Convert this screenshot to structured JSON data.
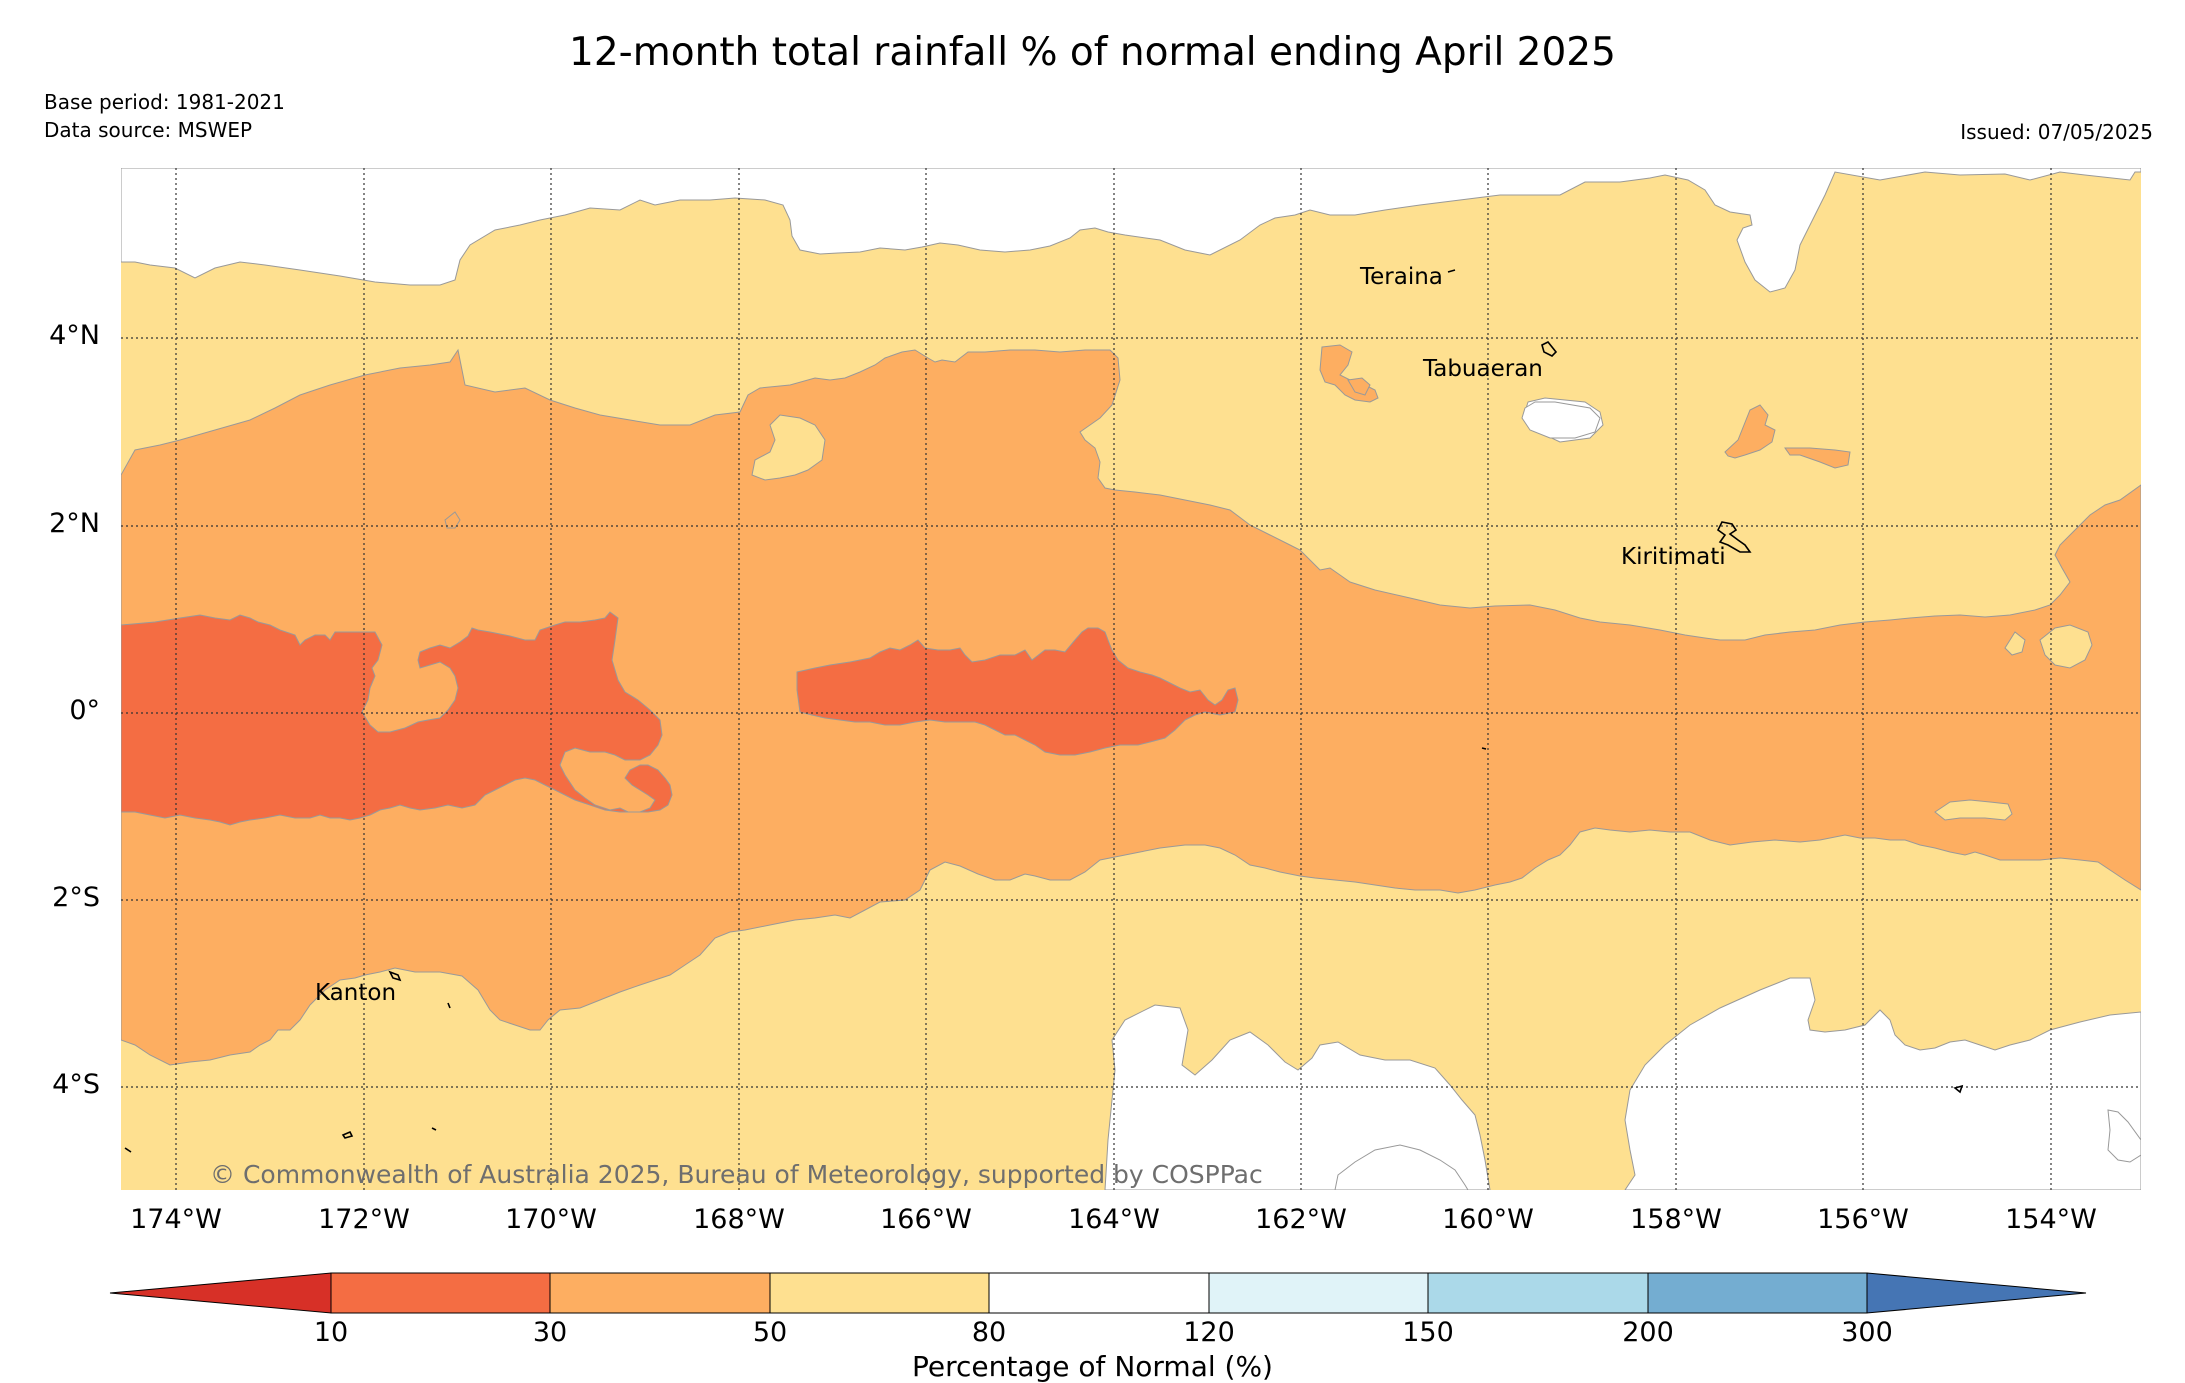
{
  "title": "12-month total rainfall % of normal ending April 2025",
  "base_period": "Base period: 1981-2021",
  "data_source": "Data source: MSWEP",
  "issued": "Issued: 07/05/2025",
  "copyright": "© Commonwealth of Australia 2025, Bureau of Meteorology, supported by COSPPac",
  "lat_labels": [
    "4°N",
    "2°N",
    "0°",
    "2°S",
    "4°S"
  ],
  "lon_labels": [
    "174°W",
    "172°W",
    "170°W",
    "168°W",
    "166°W",
    "164°W",
    "162°W",
    "160°W",
    "158°W",
    "156°W",
    "154°W"
  ],
  "places": [
    "Teraina",
    "Tabuaeran",
    "Kiritimati",
    "Kanton"
  ],
  "colorbar": {
    "label": "Percentage of Normal (%)",
    "ticks": [
      "10",
      "30",
      "50",
      "80",
      "120",
      "150",
      "200",
      "300"
    ],
    "colors": [
      "#d73027",
      "#f46d43",
      "#fdae61",
      "#fee090",
      "#ffffff",
      "#e0f3f8",
      "#abd9e9",
      "#74add1",
      "#4575b4"
    ]
  },
  "colors": {
    "p10_30": "#f46d43",
    "p30_50": "#fdae61",
    "p50_80": "#fee090",
    "p80_120": "#ffffff"
  }
}
